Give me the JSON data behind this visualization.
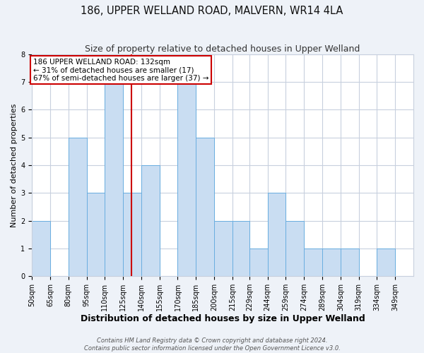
{
  "title": "186, UPPER WELLAND ROAD, MALVERN, WR14 4LA",
  "subtitle": "Size of property relative to detached houses in Upper Welland",
  "xlabel": "Distribution of detached houses by size in Upper Welland",
  "ylabel": "Number of detached properties",
  "bin_labels": [
    "50sqm",
    "65sqm",
    "80sqm",
    "95sqm",
    "110sqm",
    "125sqm",
    "140sqm",
    "155sqm",
    "170sqm",
    "185sqm",
    "200sqm",
    "215sqm",
    "229sqm",
    "244sqm",
    "259sqm",
    "274sqm",
    "289sqm",
    "304sqm",
    "319sqm",
    "334sqm",
    "349sqm"
  ],
  "bin_edges": [
    50,
    65,
    80,
    95,
    110,
    125,
    140,
    155,
    170,
    185,
    200,
    215,
    229,
    244,
    259,
    274,
    289,
    304,
    319,
    334,
    349
  ],
  "counts": [
    2,
    0,
    5,
    3,
    7,
    3,
    4,
    0,
    7,
    5,
    2,
    2,
    1,
    3,
    2,
    1,
    1,
    1,
    0,
    1
  ],
  "bar_color": "#c9ddf2",
  "bar_edge_color": "#6aaee0",
  "reference_line_x": 132,
  "reference_line_color": "#cc0000",
  "annotation_line1": "186 UPPER WELLAND ROAD: 132sqm",
  "annotation_line2": "← 31% of detached houses are smaller (17)",
  "annotation_line3": "67% of semi-detached houses are larger (37) →",
  "annotation_box_color": "#ffffff",
  "annotation_box_edge_color": "#cc0000",
  "ylim": [
    0,
    8
  ],
  "yticks": [
    0,
    1,
    2,
    3,
    4,
    5,
    6,
    7,
    8
  ],
  "footer_line1": "Contains HM Land Registry data © Crown copyright and database right 2024.",
  "footer_line2": "Contains public sector information licensed under the Open Government Licence v3.0.",
  "title_fontsize": 10.5,
  "subtitle_fontsize": 9,
  "xlabel_fontsize": 9,
  "ylabel_fontsize": 8,
  "tick_fontsize": 7,
  "annotation_fontsize": 7.5,
  "footer_fontsize": 6,
  "background_color": "#eef2f8",
  "plot_background_color": "#ffffff",
  "grid_color": "#c8d0de"
}
